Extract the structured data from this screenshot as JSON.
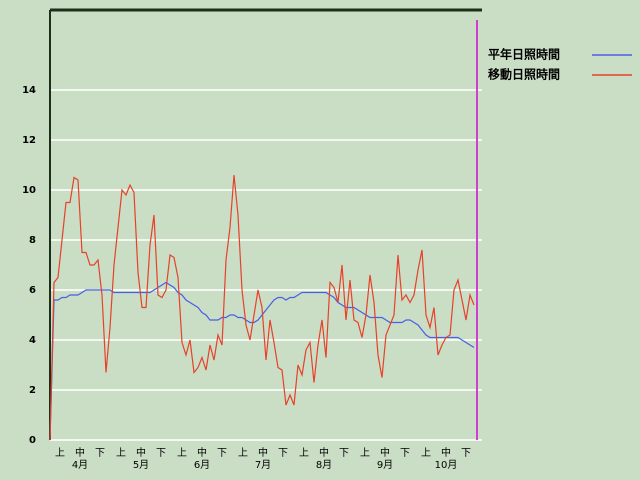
{
  "chart_data": {
    "type": "line",
    "decade_labels": [
      "上",
      "中",
      "下",
      "上",
      "中",
      "下",
      "上",
      "中",
      "下",
      "上",
      "中",
      "下",
      "上",
      "中",
      "下",
      "上",
      "中",
      "下",
      "上",
      "中",
      "下"
    ],
    "month_labels": [
      "4月",
      "5月",
      "6月",
      "7月",
      "8月",
      "9月",
      "10月"
    ],
    "ylim": [
      0,
      17.2
    ],
    "yticks": [
      0,
      2,
      4,
      6,
      8,
      10,
      12,
      14
    ],
    "grid": true,
    "legend": "top-right",
    "series": [
      {
        "name": "平年日照時間",
        "color": "#4a5ee8",
        "values": [
          0,
          5.6,
          5.6,
          5.7,
          5.7,
          5.8,
          5.8,
          5.8,
          5.9,
          6.0,
          6.0,
          6.0,
          6.0,
          6.0,
          6.0,
          6.0,
          5.9,
          5.9,
          5.9,
          5.9,
          5.9,
          5.9,
          5.9,
          5.9,
          5.9,
          5.9,
          6.0,
          6.1,
          6.2,
          6.3,
          6.2,
          6.1,
          5.9,
          5.8,
          5.6,
          5.5,
          5.4,
          5.3,
          5.1,
          5.0,
          4.8,
          4.8,
          4.8,
          4.9,
          4.9,
          5.0,
          5.0,
          4.9,
          4.9,
          4.8,
          4.7,
          4.7,
          4.8,
          5.0,
          5.2,
          5.4,
          5.6,
          5.7,
          5.7,
          5.6,
          5.7,
          5.7,
          5.8,
          5.9,
          5.9,
          5.9,
          5.9,
          5.9,
          5.9,
          5.9,
          5.8,
          5.7,
          5.5,
          5.4,
          5.3,
          5.3,
          5.3,
          5.2,
          5.1,
          5.0,
          4.9,
          4.9,
          4.9,
          4.9,
          4.8,
          4.7,
          4.7,
          4.7,
          4.7,
          4.8,
          4.8,
          4.7,
          4.6,
          4.4,
          4.2,
          4.1,
          4.1,
          4.1,
          4.1,
          4.1,
          4.1,
          4.1,
          4.1,
          4.0,
          3.9,
          3.8,
          3.7
        ]
      },
      {
        "name": "移動日照時間",
        "color": "#e8402a",
        "values": [
          0,
          6.3,
          6.5,
          8.0,
          9.5,
          9.5,
          10.5,
          10.4,
          7.5,
          7.5,
          7.0,
          7.0,
          7.2,
          5.8,
          2.7,
          4.5,
          7.0,
          8.5,
          10.0,
          9.8,
          10.2,
          9.9,
          6.7,
          5.3,
          5.3,
          7.8,
          9.0,
          5.8,
          5.7,
          6.0,
          7.4,
          7.3,
          6.5,
          3.9,
          3.4,
          4.0,
          2.7,
          2.9,
          3.3,
          2.8,
          3.8,
          3.2,
          4.2,
          3.8,
          7.2,
          8.5,
          10.6,
          9.0,
          6.0,
          4.6,
          4.0,
          5.0,
          6.0,
          5.3,
          3.2,
          4.8,
          3.9,
          2.9,
          2.8,
          1.4,
          1.8,
          1.4,
          3.0,
          2.6,
          3.6,
          3.9,
          2.3,
          3.8,
          4.8,
          3.3,
          6.3,
          6.1,
          5.5,
          7.0,
          4.8,
          6.4,
          4.8,
          4.7,
          4.1,
          5.0,
          6.6,
          5.5,
          3.4,
          2.5,
          4.2,
          4.6,
          5.0,
          7.4,
          5.6,
          5.8,
          5.5,
          5.8,
          6.8,
          7.6,
          5.0,
          4.5,
          5.3,
          3.4,
          3.8,
          4.1,
          4.2,
          6.0,
          6.4,
          5.6,
          4.8,
          5.8,
          5.4
        ]
      }
    ]
  }
}
